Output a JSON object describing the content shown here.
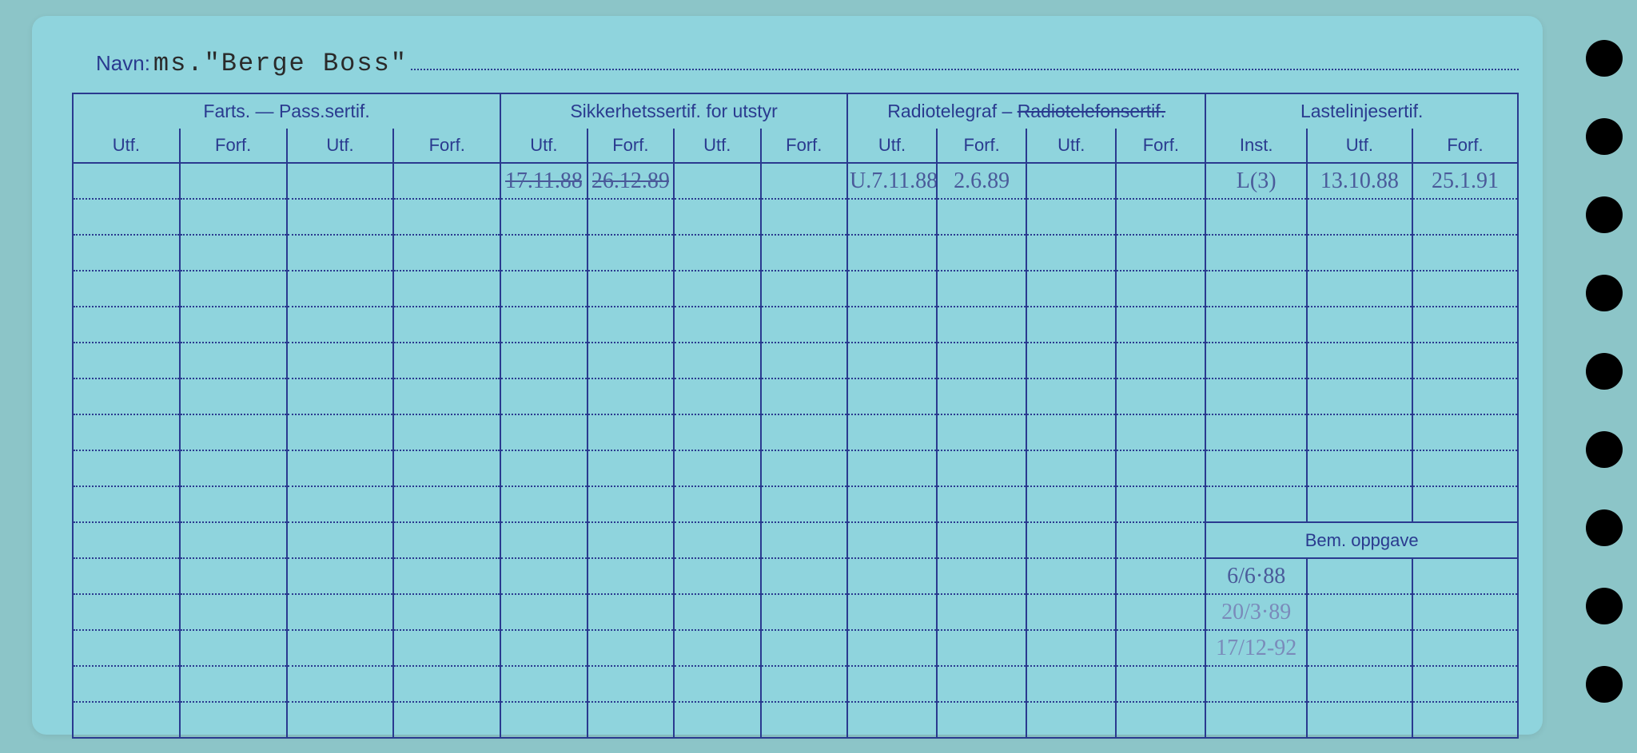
{
  "name_label": "Navn:",
  "name_value": "ms.\"Berge Boss\"",
  "groups": [
    {
      "label": "Farts. — Pass.sertif.",
      "cols": [
        "Utf.",
        "Forf.",
        "Utf.",
        "Forf."
      ],
      "span": 4
    },
    {
      "label": "Sikkerhetssertif. for utstyr",
      "cols": [
        "Utf.",
        "Forf.",
        "Utf.",
        "Forf."
      ],
      "span": 4
    },
    {
      "label_html": "Radiotelegraf – <span class='strike'>Radiotelefonsertif.</span>",
      "cols": [
        "Utf.",
        "Forf.",
        "Utf.",
        "Forf."
      ],
      "span": 4
    },
    {
      "label": "Lastelinjesertif.",
      "cols": [
        "Inst.",
        "Utf.",
        "Forf."
      ],
      "span": 3
    }
  ],
  "bem_label": "Bem. oppgave",
  "rows_main": [
    [
      "",
      "",
      "",
      "",
      "17.11.88",
      "26.12.89",
      "",
      "",
      "U.7.11.88",
      "2.6.89",
      "",
      "",
      "L(3)",
      "13.10.88",
      "25.1.91"
    ],
    [
      "",
      "",
      "",
      "",
      "",
      "",
      "",
      "",
      "",
      "",
      "",
      "",
      "",
      "",
      ""
    ],
    [
      "",
      "",
      "",
      "",
      "",
      "",
      "",
      "",
      "",
      "",
      "",
      "",
      "",
      "",
      ""
    ],
    [
      "",
      "",
      "",
      "",
      "",
      "",
      "",
      "",
      "",
      "",
      "",
      "",
      "",
      "",
      ""
    ],
    [
      "",
      "",
      "",
      "",
      "",
      "",
      "",
      "",
      "",
      "",
      "",
      "",
      "",
      "",
      ""
    ],
    [
      "",
      "",
      "",
      "",
      "",
      "",
      "",
      "",
      "",
      "",
      "",
      "",
      "",
      "",
      ""
    ],
    [
      "",
      "",
      "",
      "",
      "",
      "",
      "",
      "",
      "",
      "",
      "",
      "",
      "",
      "",
      ""
    ],
    [
      "",
      "",
      "",
      "",
      "",
      "",
      "",
      "",
      "",
      "",
      "",
      "",
      "",
      "",
      ""
    ],
    [
      "",
      "",
      "",
      "",
      "",
      "",
      "",
      "",
      "",
      "",
      "",
      "",
      "",
      "",
      ""
    ],
    [
      "",
      "",
      "",
      "",
      "",
      "",
      "",
      "",
      "",
      "",
      "",
      "",
      "",
      "",
      ""
    ]
  ],
  "rows_lower": [
    [
      "",
      "",
      "",
      "",
      "",
      "",
      "",
      "",
      "",
      "",
      "",
      "",
      "6/6·88",
      "",
      ""
    ],
    [
      "",
      "",
      "",
      "",
      "",
      "",
      "",
      "",
      "",
      "",
      "",
      "",
      "20/3·89",
      "",
      ""
    ],
    [
      "",
      "",
      "",
      "",
      "",
      "",
      "",
      "",
      "",
      "",
      "",
      "",
      "17/12-92",
      "",
      ""
    ],
    [
      "",
      "",
      "",
      "",
      "",
      "",
      "",
      "",
      "",
      "",
      "",
      "",
      "",
      "",
      ""
    ],
    [
      "",
      "",
      "",
      "",
      "",
      "",
      "",
      "",
      "",
      "",
      "",
      "",
      "",
      "",
      ""
    ]
  ],
  "struck_cells": {
    "0-4": true,
    "0-5": true
  },
  "colors": {
    "card_bg": "#8fd4dd",
    "body_bg": "#8cc5c8",
    "line": "#2a3a8f",
    "handwriting": "#4a5a9a"
  },
  "col_widths_pct": [
    7.4,
    7.4,
    7.4,
    7.4,
    6.0,
    6.0,
    6.0,
    6.0,
    6.2,
    6.2,
    6.2,
    6.2,
    7.0,
    7.3,
    7.3
  ]
}
